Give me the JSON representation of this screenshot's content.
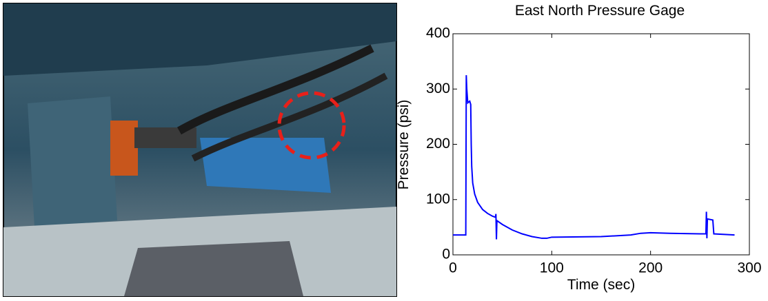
{
  "chart_data": {
    "type": "line",
    "title": "East North Pressure Gage",
    "xlabel": "Time (sec)",
    "ylabel": "Pressure (psi)",
    "x": [
      0,
      13,
      13.5,
      14,
      15,
      17,
      18,
      18.5,
      19,
      20,
      22,
      25,
      30,
      35,
      40,
      43,
      43.5,
      44,
      44.5,
      50,
      60,
      70,
      80,
      90,
      95,
      100,
      150,
      180,
      190,
      200,
      220,
      250,
      256,
      256.5,
      257,
      257.5,
      263,
      264,
      285
    ],
    "series": [
      {
        "name": "East North",
        "color": "#0000ff",
        "values": [
          36,
          36,
          325,
          300,
          275,
          278,
          272,
          200,
          160,
          130,
          110,
          95,
          82,
          75,
          70,
          68,
          74,
          28,
          62,
          55,
          45,
          38,
          33,
          30,
          30,
          32,
          33,
          36,
          39,
          40,
          39,
          38,
          38,
          78,
          30,
          65,
          63,
          38,
          36
        ]
      }
    ],
    "xlim": [
      0,
      300
    ],
    "xticks": [
      0,
      100,
      200,
      300
    ],
    "ylim": [
      0,
      400
    ],
    "yticks": [
      0,
      100,
      200,
      300,
      400
    ]
  }
}
